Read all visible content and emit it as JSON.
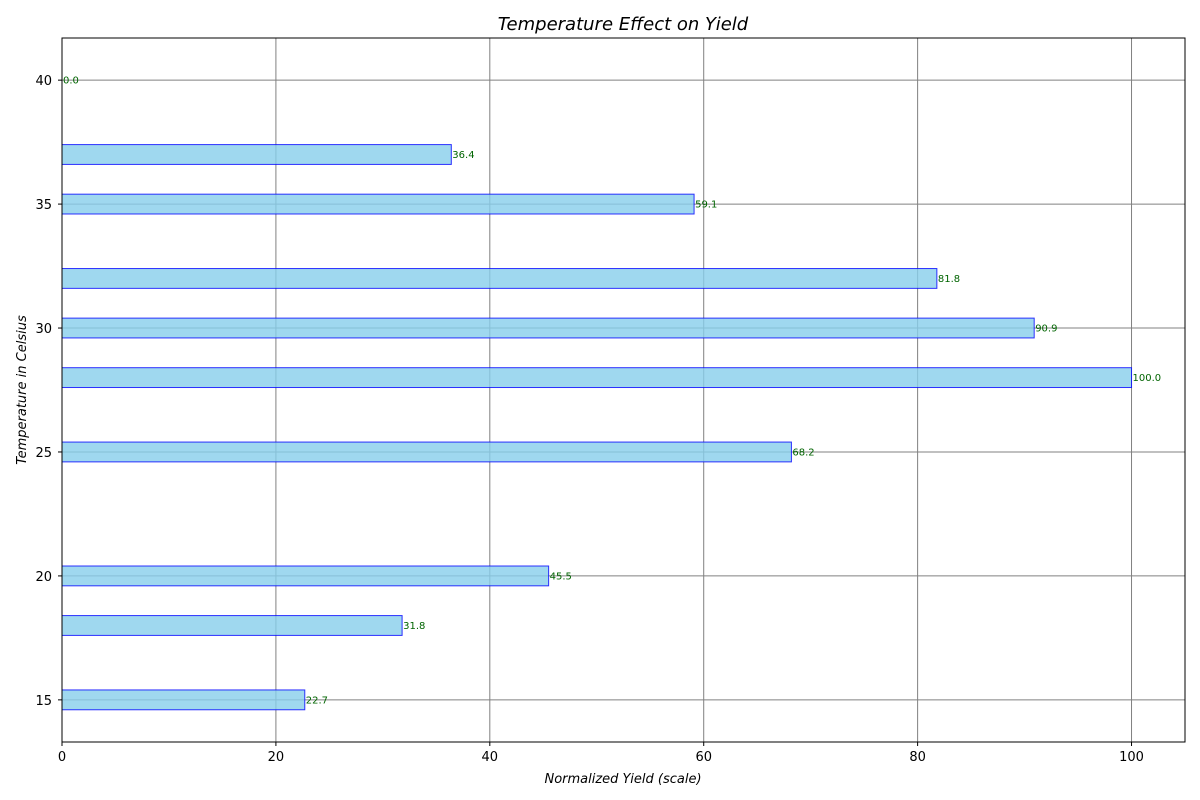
{
  "chart_data": {
    "type": "bar",
    "orientation": "horizontal",
    "title": "Temperature Effect on Yield",
    "xlabel": "Normalized Yield (scale)",
    "ylabel": "Temperature in Celsius",
    "xlim": [
      0,
      105
    ],
    "ylim": [
      13.3,
      41.7
    ],
    "xticks": [
      "0",
      "20",
      "40",
      "60",
      "80",
      "100"
    ],
    "yticks": [
      "15",
      "20",
      "25",
      "30",
      "35",
      "40"
    ],
    "grid": true,
    "legend": "none",
    "categories": [
      15,
      18,
      20,
      25,
      28,
      30,
      32,
      35,
      37,
      40
    ],
    "values": [
      22.7,
      31.8,
      45.5,
      68.2,
      100.0,
      90.9,
      81.8,
      59.1,
      36.4,
      0.0
    ],
    "data_labels": [
      "22.7",
      "31.8",
      "45.5",
      "68.2",
      "100.0",
      "90.9",
      "81.8",
      "59.1",
      "36.4",
      "0.0"
    ],
    "colors": {
      "bar_fill": "#87ceeb",
      "bar_edge": "#0000ff",
      "label_color": "#006400",
      "grid_color": "#808080"
    }
  }
}
